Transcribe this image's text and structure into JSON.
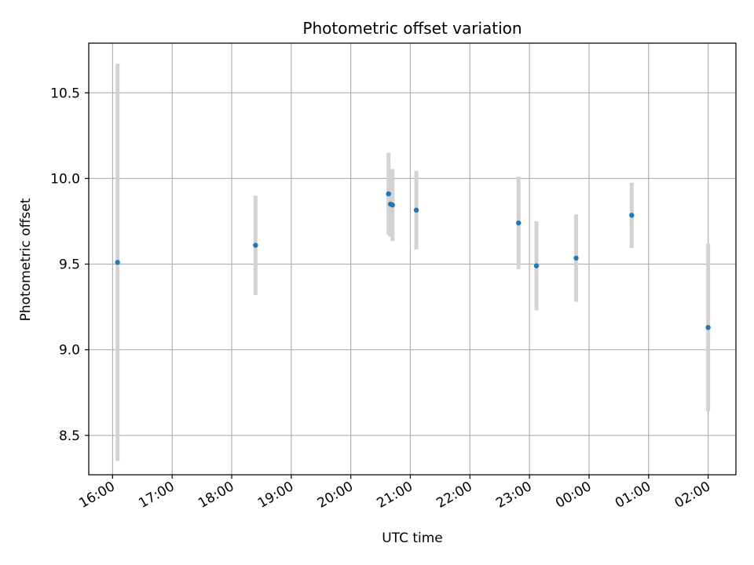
{
  "chart_data": {
    "type": "scatter",
    "title": "Photometric offset variation",
    "xlabel": "UTC time",
    "ylabel": "Photometric offset",
    "x_ticks": [
      "16:00",
      "17:00",
      "18:00",
      "19:00",
      "20:00",
      "21:00",
      "22:00",
      "23:00",
      "00:00",
      "01:00",
      "02:00"
    ],
    "y_ticks": [
      "8.5",
      "9.0",
      "9.5",
      "10.0",
      "10.5"
    ],
    "xlim": [
      "15:36",
      "02:28"
    ],
    "ylim": [
      8.27,
      10.79
    ],
    "grid": true,
    "marker_color": "#1f77b4",
    "errorbar_color": "#d3d3d3",
    "points": [
      {
        "time": "16:05",
        "value": 9.51,
        "err": 1.16
      },
      {
        "time": "18:24",
        "value": 9.61,
        "err": 0.29
      },
      {
        "time": "20:38",
        "value": 9.91,
        "err": 0.24
      },
      {
        "time": "20:40",
        "value": 9.85,
        "err": 0.19
      },
      {
        "time": "20:42",
        "value": 9.845,
        "err": 0.21
      },
      {
        "time": "21:06",
        "value": 9.815,
        "err": 0.23
      },
      {
        "time": "22:49",
        "value": 9.74,
        "err": 0.27
      },
      {
        "time": "23:07",
        "value": 9.49,
        "err": 0.26
      },
      {
        "time": "23:47",
        "value": 9.535,
        "err": 0.255
      },
      {
        "time": "00:43",
        "value": 9.785,
        "err": 0.19
      },
      {
        "time": "02:00",
        "value": 9.13,
        "err": 0.49
      }
    ]
  }
}
